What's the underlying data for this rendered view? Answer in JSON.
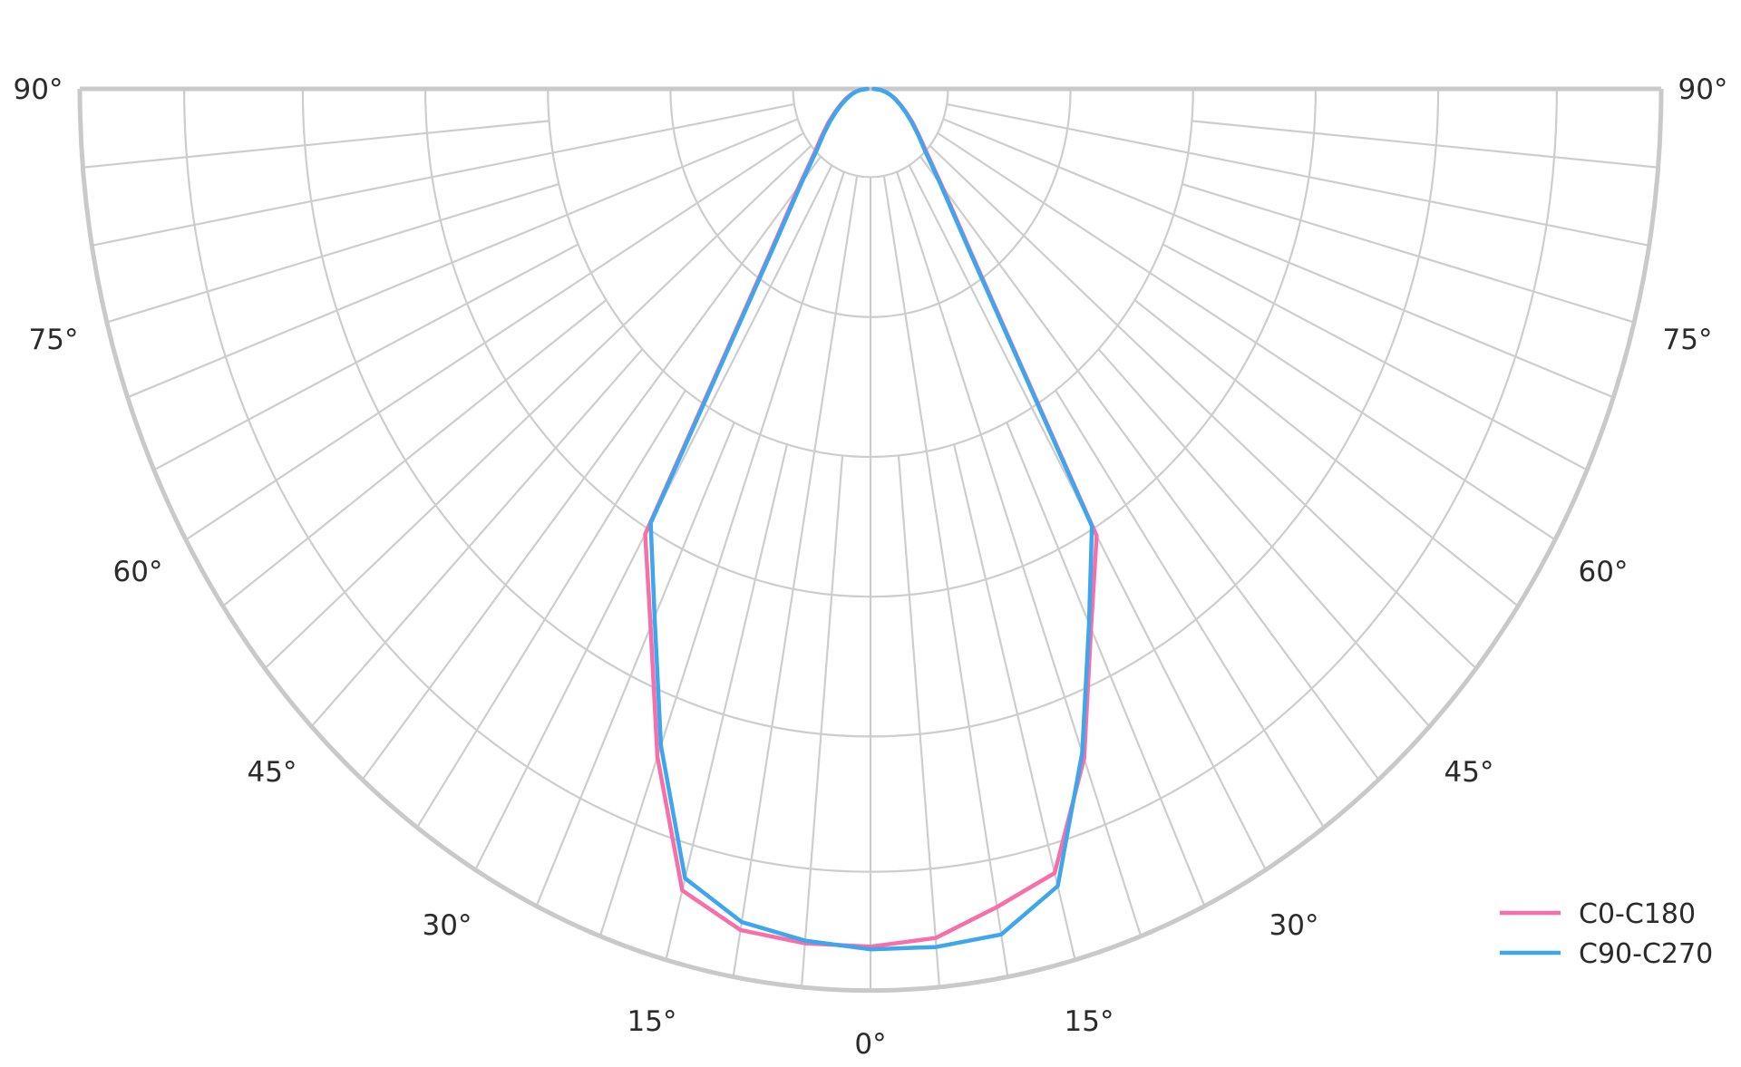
{
  "chart_data": {
    "type": "line",
    "subtype": "polar-photometric",
    "title": "",
    "description": "Luminaire polar intensity distribution (lower half-circle), 0° at nadir (bottom), 90° at horizontal; no radial value labels shown, intensities relative to outer rim = 1.0",
    "angle_unit": "deg",
    "theta_ticks": [
      "0°",
      "15°",
      "30°",
      "45°",
      "60°",
      "75°",
      "90°"
    ],
    "theta_tick_values_deg": [
      0,
      15,
      30,
      45,
      60,
      75,
      90
    ],
    "grid": {
      "ring_fractions": [
        0.098,
        0.253,
        0.408,
        0.563,
        0.718,
        0.868
      ],
      "major_spoke_step_deg": 10,
      "minor_spoke_step_deg": 5,
      "minor_spoke_start_fraction": 0.408,
      "major_spoke_start_fraction": 0.098,
      "grid_color": "#cdcdcd",
      "rim_color": "#c9c9c9"
    },
    "rlim": [
      0,
      1.0
    ],
    "angles_deg": [
      0,
      5,
      10,
      15,
      20,
      25,
      30,
      35,
      40,
      45,
      50,
      55,
      60,
      65,
      70,
      75,
      80,
      85,
      90
    ],
    "series": [
      {
        "name": "C0-C180",
        "color": "#f76fa8",
        "relative_intensity_left": [
          0.951,
          0.951,
          0.947,
          0.92,
          0.788,
          0.658,
          0.57,
          0.22,
          0.14,
          0.1,
          0.08,
          0.065,
          0.052,
          0.042,
          0.034,
          0.027,
          0.02,
          0.013,
          0.004
        ],
        "relative_intensity_right": [
          0.951,
          0.945,
          0.921,
          0.9,
          0.79,
          0.66,
          0.572,
          0.222,
          0.141,
          0.101,
          0.08,
          0.065,
          0.052,
          0.042,
          0.034,
          0.027,
          0.02,
          0.013,
          0.004
        ]
      },
      {
        "name": "C90-C270",
        "color": "#3da6ec",
        "relative_intensity_left": [
          0.954,
          0.948,
          0.938,
          0.906,
          0.775,
          0.646,
          0.556,
          0.213,
          0.135,
          0.096,
          0.077,
          0.062,
          0.05,
          0.04,
          0.032,
          0.025,
          0.019,
          0.012,
          0.004
        ],
        "relative_intensity_right": [
          0.954,
          0.955,
          0.952,
          0.915,
          0.783,
          0.654,
          0.56,
          0.216,
          0.137,
          0.098,
          0.078,
          0.063,
          0.051,
          0.041,
          0.033,
          0.026,
          0.019,
          0.012,
          0.004
        ]
      }
    ],
    "legend": {
      "position": "lower right",
      "entries": [
        {
          "label": "C0-C180",
          "color": "#f76fa8"
        },
        {
          "label": "C90-C270",
          "color": "#3da6ec"
        }
      ]
    }
  }
}
